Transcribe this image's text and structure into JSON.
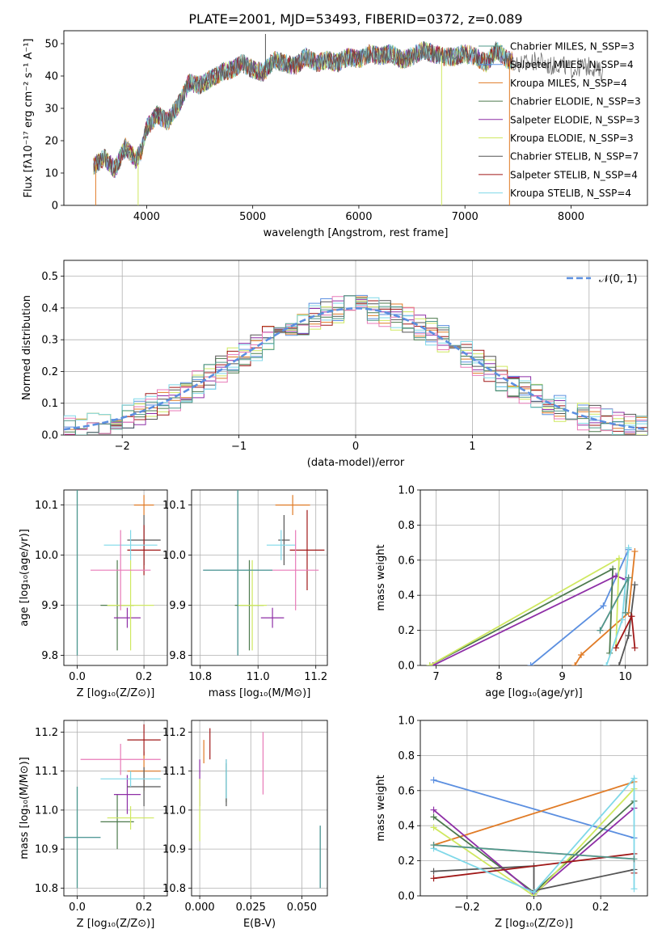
{
  "title": "PLATE=2001, MJD=53493, FIBERID=0372, z=0.089",
  "colors": {
    "Chabrier MILES": "#4f9a8a",
    "Salpeter MILES": "#5b8fe0",
    "Kroupa MILES": "#e07b26",
    "Chabrier ELODIE": "#4d7a4d",
    "Salpeter ELODIE": "#8e2ea6",
    "Kroupa ELODIE": "#cfe860",
    "Chabrier STELIB": "#555555",
    "Salpeter STELIB": "#a01818",
    "Kroupa STELIB": "#7fd8e8",
    "pink": "#e87ab8",
    "normal": "#5b8fe0"
  },
  "chart_data": [
    {
      "id": "spectrum",
      "type": "line",
      "title": "PLATE=2001, MJD=53493, FIBERID=0372, z=0.089",
      "xlabel": "wavelength [Angstrom, rest frame]",
      "ylabel": "Flux [fλ10⁻¹⁷ erg cm⁻² s⁻¹ A⁻¹]",
      "xlim": [
        3220,
        8720
      ],
      "ylim": [
        0,
        54
      ],
      "xticks": [
        "4000",
        "5000",
        "6000",
        "7000",
        "8000"
      ],
      "yticks": [
        "0",
        "10",
        "20",
        "30",
        "40",
        "50"
      ],
      "legend_position": "top-right",
      "legend": [
        "Chabrier MILES, N_SSP=3",
        "Salpeter MILES, N_SSP=4",
        "Kroupa MILES, N_SSP=4",
        "Chabrier ELODIE, N_SSP=3",
        "Salpeter ELODIE, N_SSP=3",
        "Kroupa ELODIE, N_SSP=3",
        "Chabrier STELIB, N_SSP=7",
        "Salpeter STELIB, N_SSP=4",
        "Kroupa STELIB, N_SSP=4"
      ],
      "series_x": [
        3500,
        3600,
        3700,
        3800,
        3900,
        3950,
        4000,
        4100,
        4200,
        4300,
        4400,
        4500,
        4600,
        4700,
        4800,
        4900,
        5000,
        5100,
        5200,
        5300,
        5400,
        5500,
        5600,
        5700,
        5800,
        5900,
        6000,
        6100,
        6200,
        6300,
        6400,
        6500,
        6600,
        6700,
        6800,
        6900,
        7000,
        7100,
        7200,
        7300,
        7400,
        7500,
        7600,
        7700,
        7800,
        7900,
        8000,
        8100,
        8200,
        8300
      ],
      "series_y": [
        12,
        15,
        11,
        18,
        14,
        17,
        24,
        28,
        26,
        31,
        38,
        37,
        39,
        41,
        42,
        44,
        42,
        41,
        45,
        44,
        43,
        46,
        44,
        45,
        44,
        46,
        45,
        47,
        46,
        47,
        45,
        46,
        48,
        47,
        46,
        46,
        47,
        46,
        44,
        48,
        45,
        44,
        44,
        45,
        43,
        44,
        42,
        43,
        43,
        41
      ]
    },
    {
      "id": "residuals",
      "type": "histogram",
      "xlabel": "(data-model)/error",
      "ylabel": "Normed distribution",
      "xlim": [
        -2.5,
        2.5
      ],
      "ylim": [
        0,
        0.55
      ],
      "xticks": [
        "−2",
        "−1",
        "0",
        "1",
        "2"
      ],
      "yticks": [
        "0.0",
        "0.1",
        "0.2",
        "0.3",
        "0.4",
        "0.5"
      ],
      "legend": [
        "𝒩(0, 1)"
      ],
      "legend_position": "top-right",
      "bin_width": 0.1
    },
    {
      "id": "z-age",
      "type": "scatter",
      "xlabel": "Z [log₁₀(Z/Z⊙)]",
      "ylabel": "age  [log₁₀(age/yr)]",
      "xlim": [
        -0.04,
        0.27
      ],
      "ylim": [
        9.78,
        10.13
      ],
      "xticks": [
        "0.0",
        "0.2"
      ],
      "yticks": [
        "9.8",
        "9.9",
        "10.0",
        "10.1"
      ]
    },
    {
      "id": "mass-age",
      "type": "scatter",
      "xlabel": "mass [log₁₀(M/M⊙)]",
      "ylabel": "",
      "xlim": [
        10.77,
        11.24
      ],
      "ylim": [
        9.78,
        10.13
      ],
      "xticks": [
        "10.8",
        "11.0",
        "11.2"
      ],
      "yticks": [
        "9.8",
        "9.9",
        "10.0",
        "10.1"
      ]
    },
    {
      "id": "age-weight",
      "type": "line",
      "xlabel": "age  [log₁₀(age/yr)]",
      "ylabel": "mass weight",
      "xlim": [
        6.75,
        10.35
      ],
      "ylim": [
        0,
        1
      ],
      "xticks": [
        "7",
        "8",
        "9",
        "10"
      ],
      "yticks": [
        "0.0",
        "0.2",
        "0.4",
        "0.6",
        "0.8",
        "1.0"
      ]
    },
    {
      "id": "z-mass",
      "type": "scatter",
      "xlabel": "Z [log₁₀(Z/Z⊙)]",
      "ylabel": "mass [log₁₀(M/M⊙)]",
      "xlim": [
        -0.04,
        0.27
      ],
      "ylim": [
        10.78,
        11.23
      ],
      "xticks": [
        "0.0",
        "0.2"
      ],
      "yticks": [
        "10.8",
        "10.9",
        "11.0",
        "11.1",
        "11.2"
      ]
    },
    {
      "id": "ebv-mass",
      "type": "scatter",
      "xlabel": "E(B-V)",
      "ylabel": "",
      "xlim": [
        -0.004,
        0.0625
      ],
      "ylim": [
        10.78,
        11.23
      ],
      "xticks": [
        "0.000",
        "0.025",
        "0.050"
      ],
      "yticks": [
        "10.8",
        "10.9",
        "11.0",
        "11.1",
        "11.2"
      ]
    },
    {
      "id": "z-weight",
      "type": "line",
      "xlabel": "Z [log₁₀(Z/Z⊙)]",
      "ylabel": "mass weight",
      "xlim": [
        -0.34,
        0.34
      ],
      "ylim": [
        0,
        1
      ],
      "xticks": [
        "−0.2",
        "0.0",
        "0.2"
      ],
      "yticks": [
        "0.0",
        "0.2",
        "0.4",
        "0.6",
        "0.8",
        "1.0"
      ]
    }
  ]
}
